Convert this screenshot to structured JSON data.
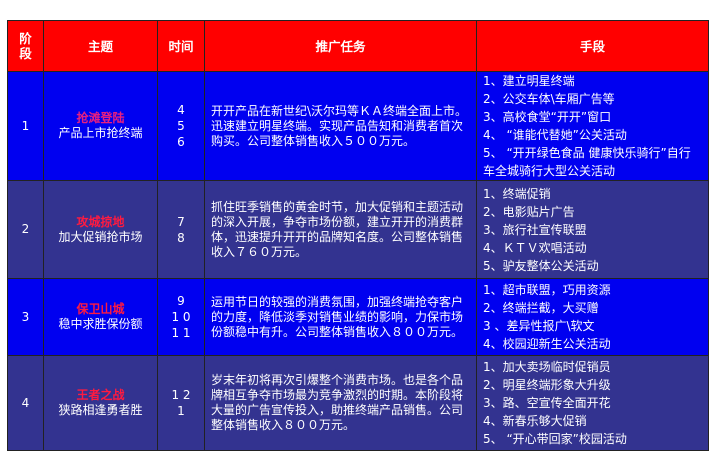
{
  "header": {
    "stage": "阶段",
    "theme": "主题",
    "time": "时间",
    "task": "推广任务",
    "means": "手段"
  },
  "rows": [
    {
      "stage": "1",
      "title": "抢滩登陆",
      "subtitle": "产品上市抢终端",
      "times": [
        "4",
        "5",
        "6"
      ],
      "task": "开开产品在新世纪\\沃尔玛等ＫＡ终端全面上市。迅速建立明星终端。实现产品告知和消费者首次购买。公司整体销售收入５００万元。",
      "means": [
        "1、建立明星终端",
        "2、公交车体\\车厢广告等",
        "3、高校食堂“开开”窗口",
        "4、 “谁能代替她”公关活动",
        "5、 “开开绿色食品  健康快乐骑行”自行车全城骑行大型公关活动"
      ]
    },
    {
      "stage": "2",
      "title": "攻城掠地",
      "subtitle": "加大促销抢市场",
      "times": [
        "7",
        "8"
      ],
      "task": "抓住旺季销售的黄金时节，加大促销和主题活动的深入开展，争夺市场份额，建立开开的消费群体，迅速提升开开的品牌知名度。公司整体销售收入７６０万元。",
      "means": [
        "1、终端促销",
        "2、电影贴片广告",
        "3、旅行社宣传联盟",
        "4、ＫＴＶ欢唱活动",
        "5、驴友整体公关活动"
      ]
    },
    {
      "stage": "3",
      "title": "保卫山城",
      "subtitle": "稳中求胜保份额",
      "times": [
        "9",
        "1 0",
        "1 1"
      ],
      "task": "运用节日的较强的消费氛围，加强终端抢夺客户的力度，降低淡季对销售业绩的影响，力保市场份额稳中有升。公司整体销售收入８００万元。",
      "means": [
        "1、超市联盟，巧用资源",
        "2、终端拦截，大买赠",
        "3 、差异性报广\\软文",
        "4、校园迎新生公关活动"
      ]
    },
    {
      "stage": "4",
      "title": "王者之战",
      "subtitle": "狭路相逢勇者胜",
      "times": [
        "1 2",
        "1"
      ],
      "task": "岁末年初将再次引爆整个消费市场。也是各个品牌相互争夺市场最为竞争激烈的时期。本阶段将大量的广告宣传投入，助推终端产品销售。公司整体销售收入８００万元。",
      "means": [
        "1、加大卖场临时促销员",
        "2、明星终端形象大升级",
        "3、路、空宣传全面开花",
        "4、新春乐够大促销",
        "5、 “开心带回家”校园活动"
      ]
    }
  ],
  "colors": {
    "header": "#ff0000",
    "row_bright": "#0000f0",
    "row_dark": "#333390",
    "title": "#ff1a40"
  }
}
